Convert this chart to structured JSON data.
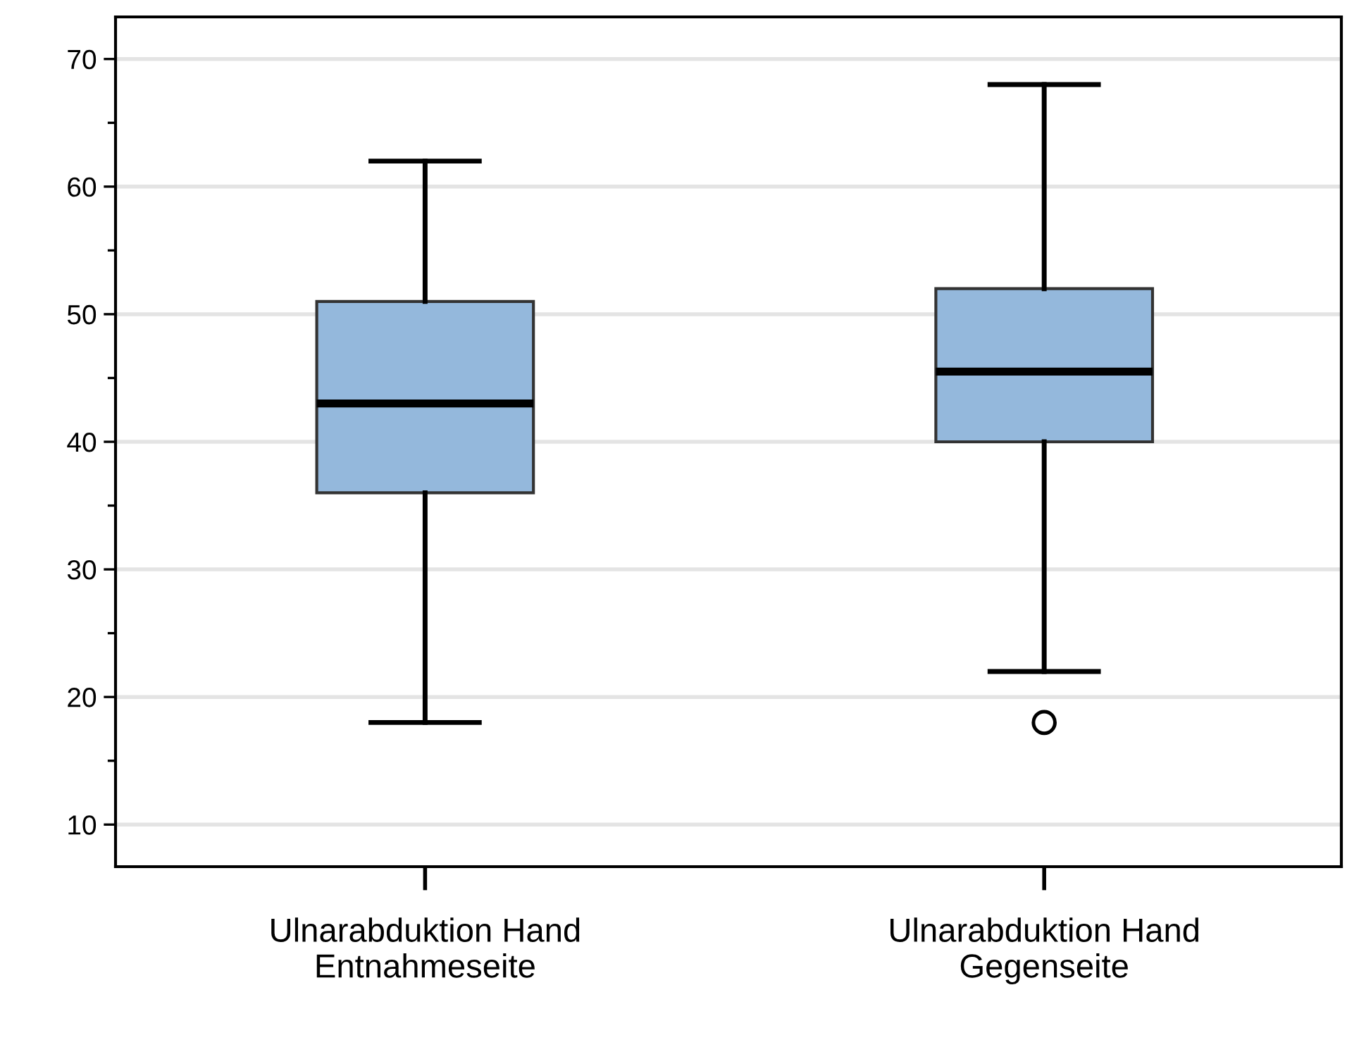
{
  "chart_data": {
    "type": "box",
    "categories": [
      "Ulnarabduktion Hand\nEntnahmeseite",
      "Ulnarabduktion Hand\nGegenseite"
    ],
    "boxes": [
      {
        "low": 18,
        "q1": 36,
        "median": 43,
        "q3": 51,
        "high": 62
      },
      {
        "low": 22,
        "q1": 40,
        "median": 45.5,
        "q3": 52,
        "high": 68,
        "outliers": [
          18
        ]
      }
    ],
    "color": "#94b8dc",
    "ylim": [
      6.7,
      73.3
    ],
    "yticks": [
      10,
      {
        "value": 15,
        "label": null
      },
      20,
      {
        "value": 25,
        "label": null
      },
      30,
      {
        "value": 35,
        "label": null
      },
      40,
      {
        "value": 45,
        "label": null
      },
      50,
      {
        "value": 55,
        "label": null
      },
      60,
      {
        "value": 65,
        "label": null
      },
      70
    ],
    "grid": "y"
  }
}
